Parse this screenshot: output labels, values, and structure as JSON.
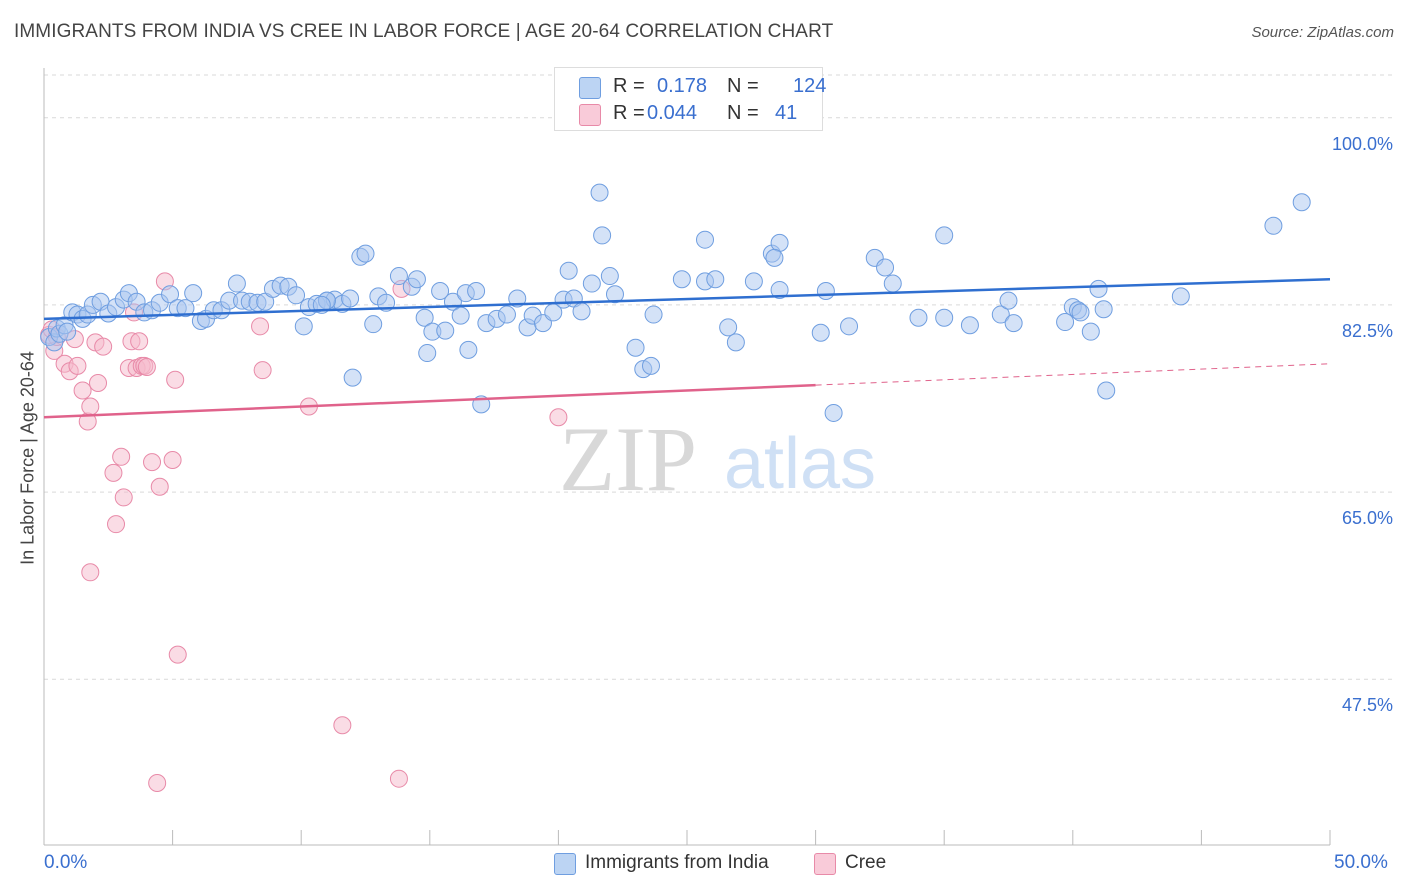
{
  "header": {
    "title": "IMMIGRANTS FROM INDIA VS CREE IN LABOR FORCE | AGE 20-64 CORRELATION CHART",
    "source": "Source: ZipAtlas.com"
  },
  "legend": {
    "india": {
      "r_label": "R =",
      "r_value": "0.178",
      "n_label": "N =",
      "n_value": "124"
    },
    "cree": {
      "r_label": "R =",
      "r_value": "0.044",
      "n_label": "N =",
      "n_value": "41"
    }
  },
  "watermark": {
    "zip": "ZIP",
    "atlas": "atlas"
  },
  "colors": {
    "india_fill": "#a9c6ef",
    "india_stroke": "#6f9ee0",
    "india_line": "#2f6fd0",
    "cree_fill": "#f6b9cc",
    "cree_stroke": "#e88aa8",
    "cree_line": "#e0628b",
    "axis_label": "#3a6fcf",
    "grid": "#d9d9d9"
  },
  "chart_data": {
    "type": "scatter",
    "title": "IMMIGRANTS FROM INDIA VS CREE IN LABOR FORCE | AGE 20-64 CORRELATION CHART",
    "xlabel": "",
    "ylabel": "In Labor Force | Age 20-64",
    "xlim": [
      0,
      50
    ],
    "ylim": [
      32,
      104
    ],
    "x_tick_labels": [
      "0.0%",
      "50.0%"
    ],
    "y_ticks": [
      47.5,
      65.0,
      82.5,
      100.0
    ],
    "y_tick_labels": [
      "47.5%",
      "65.0%",
      "82.5%",
      "100.0%"
    ],
    "series": [
      {
        "name": "Immigrants from India",
        "r": 0.178,
        "n": 124,
        "trend": {
          "x_start": 0,
          "y_start": 81.2,
          "x_end": 50,
          "y_end": 84.9,
          "dashed_from_x": null
        },
        "points": [
          [
            0.2,
            79.5
          ],
          [
            0.4,
            79.0
          ],
          [
            0.5,
            80.3
          ],
          [
            0.6,
            79.8
          ],
          [
            0.8,
            80.6
          ],
          [
            0.9,
            80.0
          ],
          [
            1.1,
            81.8
          ],
          [
            1.3,
            81.6
          ],
          [
            1.5,
            81.2
          ],
          [
            1.7,
            81.6
          ],
          [
            1.9,
            82.5
          ],
          [
            2.2,
            82.8
          ],
          [
            2.5,
            81.7
          ],
          [
            2.8,
            82.3
          ],
          [
            3.1,
            83.0
          ],
          [
            3.3,
            83.6
          ],
          [
            3.6,
            82.8
          ],
          [
            3.9,
            81.8
          ],
          [
            4.2,
            82.0
          ],
          [
            4.5,
            82.7
          ],
          [
            4.9,
            83.5
          ],
          [
            5.2,
            82.2
          ],
          [
            5.5,
            82.2
          ],
          [
            5.8,
            83.6
          ],
          [
            6.1,
            81.0
          ],
          [
            6.3,
            81.2
          ],
          [
            6.6,
            82.0
          ],
          [
            6.9,
            82.0
          ],
          [
            7.2,
            82.9
          ],
          [
            7.5,
            84.5
          ],
          [
            7.7,
            82.9
          ],
          [
            8.0,
            82.8
          ],
          [
            8.3,
            82.7
          ],
          [
            8.6,
            82.8
          ],
          [
            8.9,
            84.0
          ],
          [
            9.2,
            84.3
          ],
          [
            9.5,
            84.2
          ],
          [
            9.8,
            83.4
          ],
          [
            10.1,
            80.5
          ],
          [
            10.3,
            82.3
          ],
          [
            10.6,
            82.6
          ],
          [
            11.0,
            82.9
          ],
          [
            11.3,
            83.0
          ],
          [
            11.6,
            82.6
          ],
          [
            11.9,
            83.1
          ],
          [
            11.0,
            82.9
          ],
          [
            10.8,
            82.5
          ],
          [
            12.3,
            87.0
          ],
          [
            12.5,
            87.3
          ],
          [
            12.8,
            80.7
          ],
          [
            13.0,
            83.3
          ],
          [
            13.3,
            82.7
          ],
          [
            13.8,
            85.2
          ],
          [
            14.3,
            84.2
          ],
          [
            14.5,
            84.9
          ],
          [
            14.8,
            81.3
          ],
          [
            15.1,
            80.0
          ],
          [
            15.6,
            80.1
          ],
          [
            15.9,
            82.8
          ],
          [
            15.4,
            83.8
          ],
          [
            16.2,
            81.5
          ],
          [
            16.4,
            83.6
          ],
          [
            16.8,
            83.8
          ],
          [
            14.9,
            78.0
          ],
          [
            12.0,
            75.7
          ],
          [
            16.5,
            78.3
          ],
          [
            17.0,
            73.2
          ],
          [
            17.2,
            80.8
          ],
          [
            17.6,
            81.2
          ],
          [
            18.0,
            81.6
          ],
          [
            18.4,
            83.1
          ],
          [
            18.8,
            80.4
          ],
          [
            19.0,
            81.5
          ],
          [
            19.4,
            80.8
          ],
          [
            19.8,
            81.8
          ],
          [
            20.2,
            83.0
          ],
          [
            20.4,
            85.7
          ],
          [
            20.6,
            83.1
          ],
          [
            20.9,
            81.9
          ],
          [
            21.3,
            84.5
          ],
          [
            21.6,
            93.0
          ],
          [
            21.7,
            89.0
          ],
          [
            22.0,
            85.2
          ],
          [
            22.2,
            83.5
          ],
          [
            23.0,
            78.5
          ],
          [
            23.3,
            76.5
          ],
          [
            23.6,
            76.8
          ],
          [
            23.7,
            81.6
          ],
          [
            24.8,
            84.9
          ],
          [
            25.7,
            84.7
          ],
          [
            26.1,
            84.9
          ],
          [
            25.7,
            88.6
          ],
          [
            26.6,
            80.4
          ],
          [
            26.9,
            79.0
          ],
          [
            27.6,
            84.7
          ],
          [
            28.3,
            87.3
          ],
          [
            28.6,
            88.3
          ],
          [
            28.4,
            86.9
          ],
          [
            28.6,
            83.9
          ],
          [
            30.4,
            83.8
          ],
          [
            30.2,
            79.9
          ],
          [
            31.3,
            80.5
          ],
          [
            32.3,
            86.9
          ],
          [
            32.7,
            86.0
          ],
          [
            33.0,
            84.5
          ],
          [
            34.0,
            81.3
          ],
          [
            35.0,
            89.0
          ],
          [
            35.0,
            81.3
          ],
          [
            36.0,
            80.6
          ],
          [
            37.2,
            81.6
          ],
          [
            37.5,
            82.9
          ],
          [
            37.7,
            80.8
          ],
          [
            40.0,
            82.3
          ],
          [
            40.2,
            82.0
          ],
          [
            41.0,
            84.0
          ],
          [
            41.3,
            74.5
          ],
          [
            44.2,
            83.3
          ],
          [
            47.8,
            89.9
          ],
          [
            40.7,
            80.0
          ],
          [
            30.7,
            72.4
          ],
          [
            40.3,
            81.8
          ],
          [
            39.7,
            80.9
          ],
          [
            41.2,
            82.1
          ],
          [
            48.9,
            92.1
          ]
        ]
      },
      {
        "name": "Cree",
        "r": 0.044,
        "n": 41,
        "trend": {
          "x_start": 0,
          "y_start": 72.0,
          "x_end": 50,
          "y_end": 77.0,
          "dashed_from_x": 30.0
        },
        "points": [
          [
            0.2,
            79.7
          ],
          [
            0.3,
            80.2
          ],
          [
            0.4,
            78.2
          ],
          [
            0.5,
            79.5
          ],
          [
            0.8,
            77.0
          ],
          [
            1.0,
            76.3
          ],
          [
            1.2,
            79.3
          ],
          [
            1.3,
            76.8
          ],
          [
            1.5,
            74.5
          ],
          [
            1.7,
            71.6
          ],
          [
            1.8,
            73.0
          ],
          [
            2.0,
            79.0
          ],
          [
            2.1,
            75.2
          ],
          [
            2.3,
            78.6
          ],
          [
            2.7,
            66.8
          ],
          [
            2.8,
            62.0
          ],
          [
            3.0,
            68.3
          ],
          [
            3.1,
            64.5
          ],
          [
            3.3,
            76.6
          ],
          [
            3.4,
            79.1
          ],
          [
            3.5,
            81.8
          ],
          [
            3.6,
            76.6
          ],
          [
            3.7,
            79.1
          ],
          [
            3.8,
            76.8
          ],
          [
            3.9,
            76.8
          ],
          [
            4.0,
            76.7
          ],
          [
            4.2,
            67.8
          ],
          [
            4.4,
            37.8
          ],
          [
            4.5,
            65.5
          ],
          [
            4.7,
            84.7
          ],
          [
            5.0,
            68.0
          ],
          [
            5.1,
            75.5
          ],
          [
            5.2,
            49.8
          ],
          [
            8.4,
            80.5
          ],
          [
            8.5,
            76.4
          ],
          [
            10.3,
            73.0
          ],
          [
            11.6,
            43.2
          ],
          [
            13.8,
            38.2
          ],
          [
            13.9,
            84.0
          ],
          [
            20.0,
            72.0
          ],
          [
            1.8,
            57.5
          ]
        ]
      }
    ]
  },
  "bottom_legend": {
    "india_label": "Immigrants from India",
    "cree_label": "Cree"
  }
}
